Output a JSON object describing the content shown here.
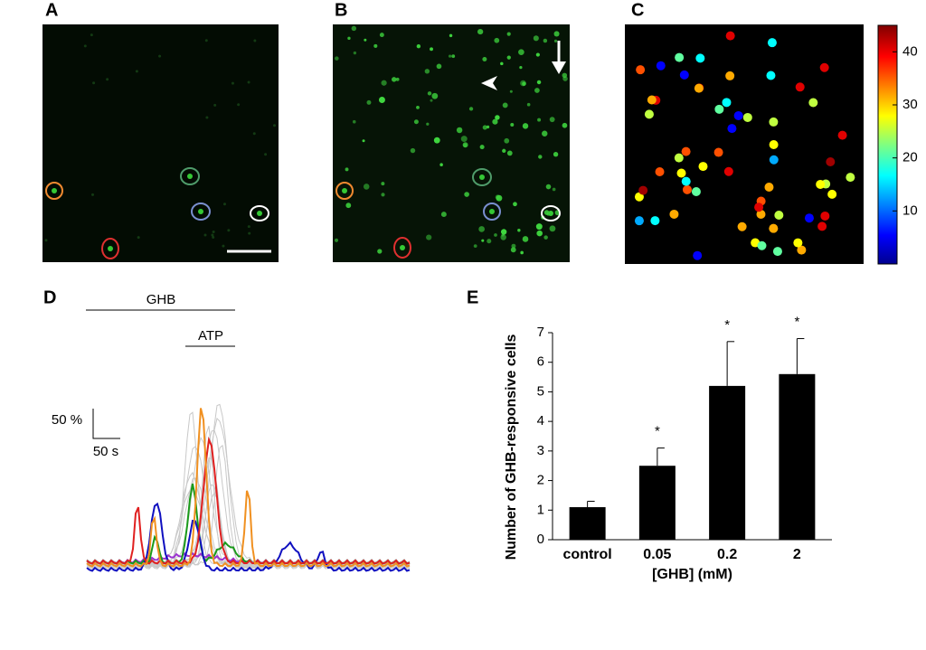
{
  "panel_labels": [
    "A",
    "B",
    "C",
    "D",
    "E"
  ],
  "colorbar": {
    "lim": [
      0,
      45
    ],
    "ticks": [
      10,
      20,
      30,
      40
    ]
  },
  "trace_labels": {
    "ghb": "GHB",
    "atp": "ATP",
    "scale_y": "50 %",
    "scale_x": "50 s"
  },
  "chart_data": {
    "type": "bar",
    "categories": [
      "control",
      "0.05",
      "0.2",
      "2"
    ],
    "values": [
      1.1,
      2.5,
      5.2,
      5.6
    ],
    "errors": [
      0.2,
      0.6,
      1.5,
      1.2
    ],
    "significance": [
      null,
      "*",
      "*",
      "*"
    ],
    "color": "#000000",
    "ylabel": "Number of GHB-responsive cells",
    "xlabel": "[GHB] (mM)",
    "ylim": [
      0,
      7
    ],
    "yticks": [
      0,
      1,
      2,
      3,
      4,
      5,
      6,
      7
    ]
  }
}
